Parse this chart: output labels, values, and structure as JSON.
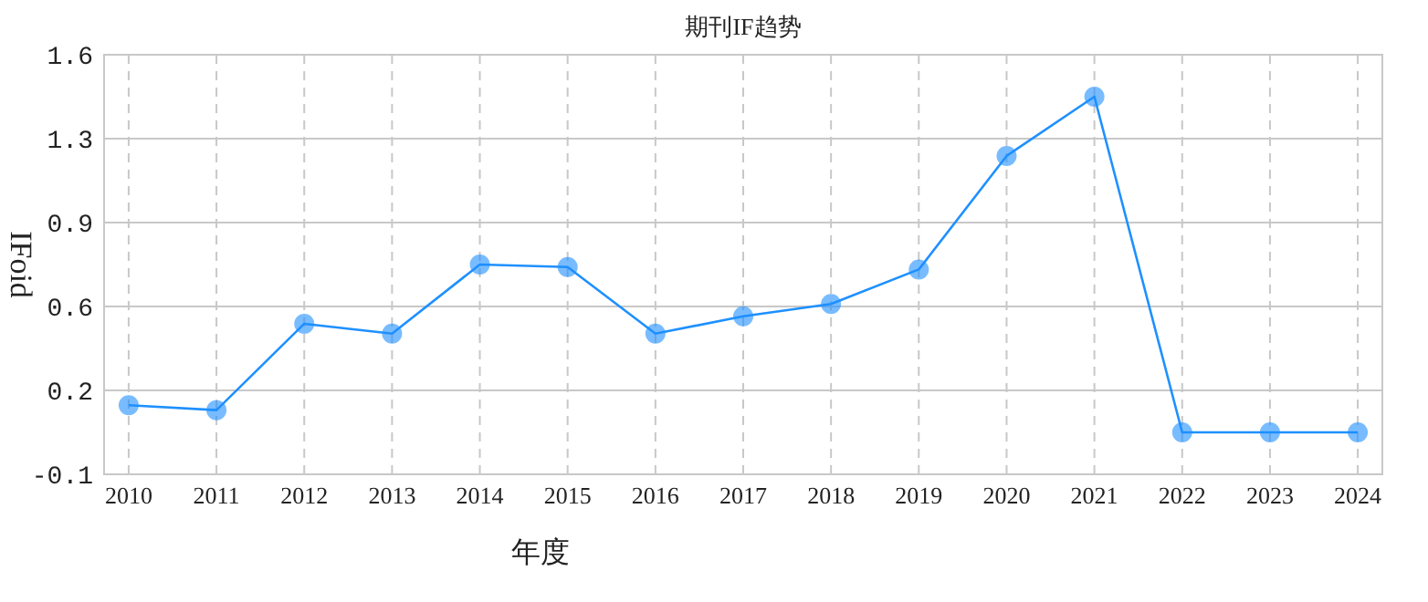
{
  "chart_data": {
    "type": "line",
    "title": "期刊IF趋势",
    "xlabel": "年度",
    "ylabel": "IFoid",
    "categories": [
      "2010",
      "2011",
      "2012",
      "2013",
      "2014",
      "2015",
      "2016",
      "2017",
      "2018",
      "2019",
      "2020",
      "2021",
      "2022",
      "2023",
      "2024"
    ],
    "series": [
      {
        "color": "#1e90ff",
        "values": [
          0.18,
          0.16,
          0.51,
          0.47,
          0.75,
          0.74,
          0.47,
          0.54,
          0.59,
          0.73,
          1.19,
          1.43,
          0.07,
          0.07,
          0.07
        ]
      }
    ],
    "ylim": [
      -0.1,
      1.6
    ],
    "yticks": [
      {
        "value": -0.1,
        "label": "-0.1"
      },
      {
        "value": 0.24,
        "label": "0.2"
      },
      {
        "value": 0.58,
        "label": "0.6"
      },
      {
        "value": 0.92,
        "label": "0.9"
      },
      {
        "value": 1.26,
        "label": "1.3"
      },
      {
        "value": 1.6,
        "label": "1.6"
      }
    ],
    "grid": true,
    "marker": "circle",
    "line_style": "solid"
  }
}
